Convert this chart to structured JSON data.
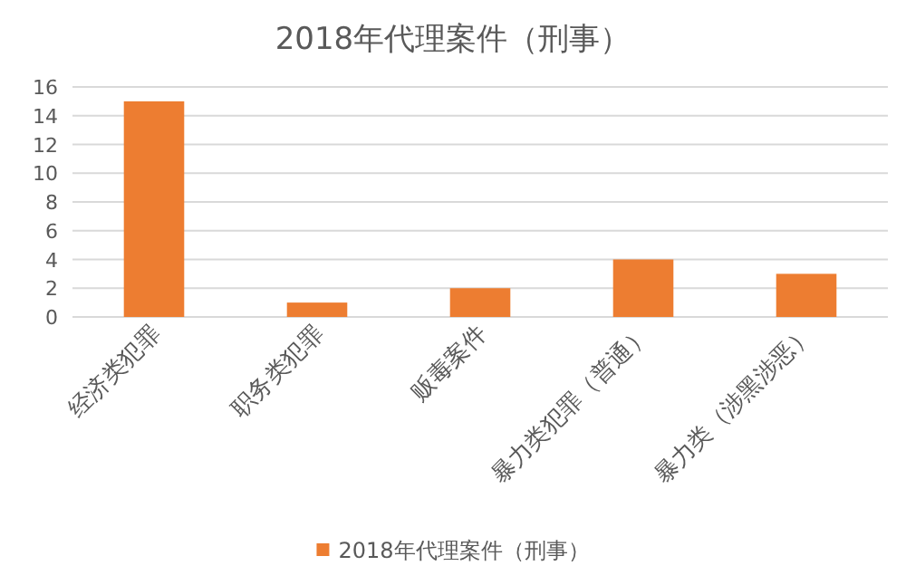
{
  "chart_data": {
    "type": "bar",
    "title": "2018年代理案件（刑事）",
    "categories": [
      "经济类犯罪",
      "职务类犯罪",
      "贩毒案件",
      "暴力类犯罪（普通）",
      "暴力类（涉黑涉恶）"
    ],
    "series": [
      {
        "name": "2018年代理案件（刑事）",
        "color": "#ed7d31",
        "values": [
          15,
          1,
          2,
          4,
          3
        ]
      }
    ],
    "ylim": [
      0,
      16
    ],
    "yticks": [
      0,
      2,
      4,
      6,
      8,
      10,
      12,
      14,
      16
    ],
    "grid": "y",
    "legend": "bottom"
  }
}
